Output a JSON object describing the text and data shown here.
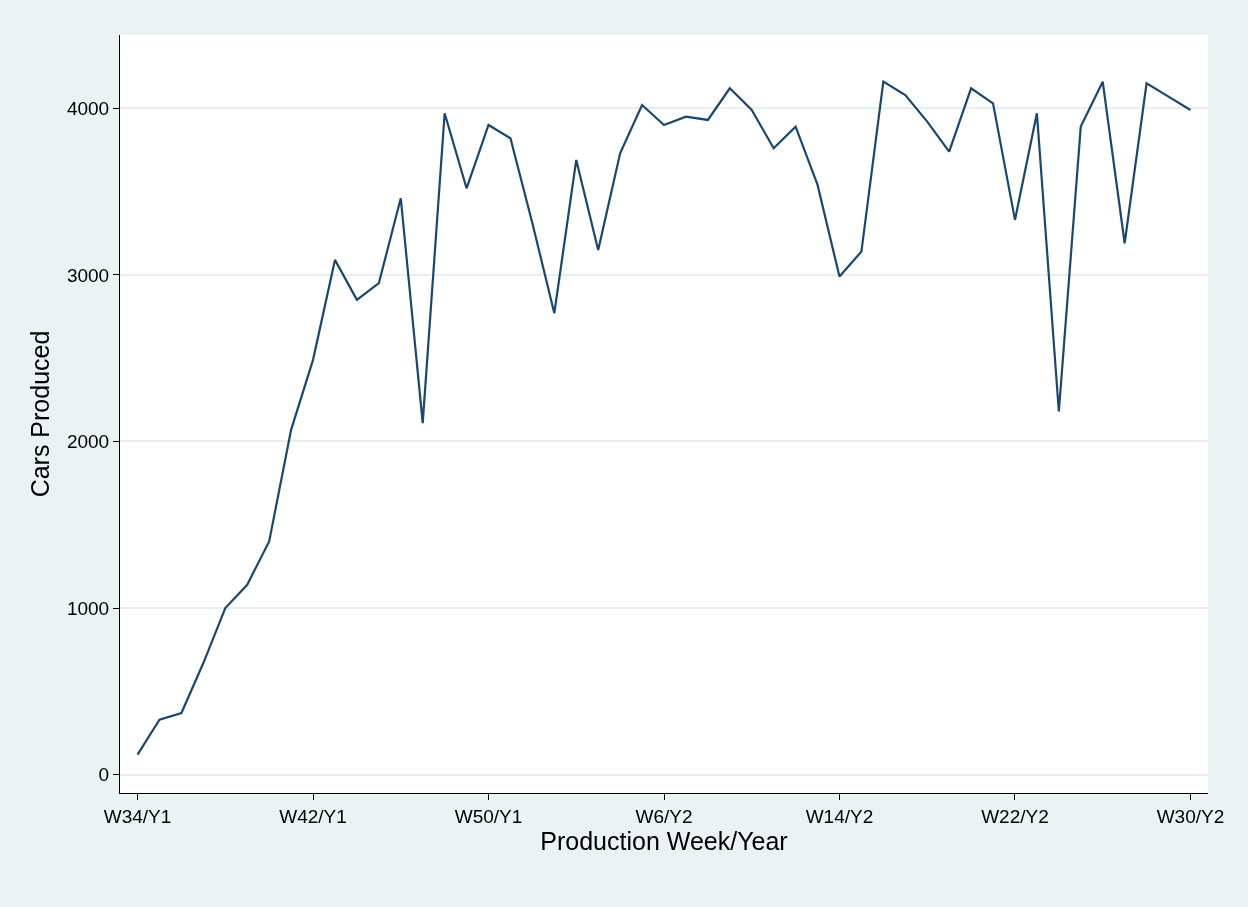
{
  "chart_data": {
    "type": "line",
    "xlabel": "Production Week/Year",
    "ylabel": "Cars Produced",
    "categories": [
      "W34/Y1",
      null,
      null,
      null,
      null,
      null,
      null,
      null,
      "W42/Y1",
      null,
      null,
      null,
      null,
      null,
      null,
      null,
      "W50/Y1",
      null,
      null,
      null,
      null,
      null,
      null,
      null,
      "W6/Y2",
      null,
      null,
      null,
      null,
      null,
      null,
      null,
      "W14/Y2",
      null,
      null,
      null,
      null,
      null,
      null,
      null,
      "W22/Y2",
      null,
      null,
      null,
      null,
      null,
      null,
      null,
      "W30/Y2"
    ],
    "series": [
      {
        "color": "#1a476f",
        "values": [
          120,
          330,
          370,
          670,
          1000,
          1140,
          1400,
          2070,
          2490,
          3090,
          2850,
          2950,
          3460,
          2110,
          3970,
          3520,
          3900,
          3820,
          3310,
          2770,
          3690,
          3150,
          3730,
          4020,
          3900,
          3950,
          3930,
          4120,
          3990,
          3760,
          3890,
          3540,
          2990,
          3140,
          4160,
          4080,
          3920,
          3740,
          4120,
          4030,
          3330,
          3970,
          2180,
          3890,
          4160,
          3190,
          4150,
          4070,
          3990
        ]
      }
    ],
    "ylim": [
      -110,
      4440
    ],
    "yticks": [
      0,
      1000,
      2000,
      3000,
      4000
    ],
    "grid": "y",
    "marker": "none",
    "line_style": "solid"
  }
}
